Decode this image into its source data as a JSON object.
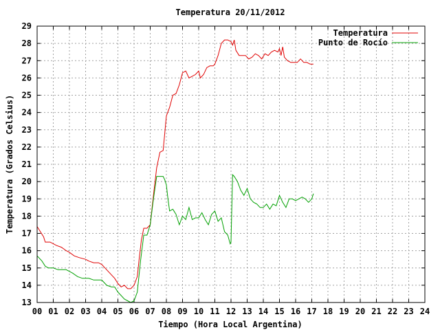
{
  "chart_data": {
    "type": "line",
    "title": "Temperatura 20/11/2012",
    "xlabel": "Tiempo (Hora Local Argentina)",
    "ylabel": "Temperatura (Grados Celsius)",
    "xlim": [
      0,
      24
    ],
    "ylim": [
      13,
      29
    ],
    "x_ticks": [
      "00",
      "01",
      "02",
      "03",
      "04",
      "05",
      "06",
      "07",
      "08",
      "09",
      "10",
      "11",
      "12",
      "13",
      "14",
      "15",
      "16",
      "17",
      "18",
      "19",
      "20",
      "21",
      "22",
      "23",
      "24"
    ],
    "y_ticks": [
      "13",
      "14",
      "15",
      "16",
      "17",
      "18",
      "19",
      "20",
      "21",
      "22",
      "23",
      "24",
      "25",
      "26",
      "27",
      "28",
      "29"
    ],
    "grid": true,
    "legend_position": "top-right",
    "series": [
      {
        "name": "Temperatura",
        "color": "#e00000",
        "x": [
          0,
          0.2,
          0.4,
          0.5,
          0.8,
          1.0,
          1.2,
          1.5,
          1.8,
          2.0,
          2.3,
          2.6,
          3.0,
          3.2,
          3.5,
          3.8,
          4.0,
          4.3,
          4.6,
          4.8,
          5.0,
          5.2,
          5.4,
          5.6,
          5.8,
          6.0,
          6.2,
          6.3,
          6.45,
          6.6,
          6.8,
          7.0,
          7.2,
          7.4,
          7.6,
          7.8,
          8.0,
          8.2,
          8.4,
          8.6,
          8.8,
          9.0,
          9.2,
          9.4,
          9.6,
          9.8,
          10.0,
          10.1,
          10.3,
          10.5,
          10.7,
          10.9,
          11.0,
          11.2,
          11.4,
          11.6,
          11.8,
          12.0,
          12.1,
          12.2,
          12.3,
          12.5,
          12.7,
          12.9,
          13.1,
          13.3,
          13.5,
          13.7,
          13.9,
          14.1,
          14.3,
          14.5,
          14.7,
          14.9,
          15.0,
          15.1,
          15.2,
          15.3,
          15.5,
          15.7,
          15.9,
          16.1,
          16.3,
          16.5,
          16.7,
          16.9,
          17.1
        ],
        "y": [
          17.4,
          17.1,
          16.8,
          16.5,
          16.5,
          16.4,
          16.3,
          16.2,
          16.0,
          15.9,
          15.7,
          15.6,
          15.5,
          15.4,
          15.3,
          15.3,
          15.2,
          14.9,
          14.6,
          14.4,
          14.1,
          13.9,
          14.0,
          13.8,
          13.8,
          14.0,
          14.5,
          15.4,
          16.6,
          17.3,
          17.3,
          17.5,
          19.2,
          20.8,
          21.7,
          21.8,
          23.8,
          24.3,
          25.0,
          25.1,
          25.6,
          26.3,
          26.4,
          26.0,
          26.1,
          26.2,
          26.4,
          26.0,
          26.2,
          26.6,
          26.7,
          26.7,
          26.8,
          27.3,
          28.0,
          28.2,
          28.2,
          28.1,
          27.9,
          28.2,
          27.6,
          27.3,
          27.3,
          27.3,
          27.1,
          27.2,
          27.4,
          27.3,
          27.1,
          27.4,
          27.3,
          27.5,
          27.6,
          27.5,
          27.7,
          27.3,
          27.8,
          27.2,
          27.0,
          26.9,
          26.9,
          26.9,
          27.1,
          26.9,
          26.9,
          26.8,
          26.8
        ]
      },
      {
        "name": "Punto de Rocío",
        "color": "#00a000",
        "x": [
          0,
          0.1,
          0.3,
          0.5,
          0.7,
          1.0,
          1.3,
          1.5,
          1.8,
          2.0,
          2.2,
          2.5,
          2.8,
          3.0,
          3.2,
          3.5,
          3.8,
          4.0,
          4.3,
          4.6,
          4.8,
          5.0,
          5.2,
          5.4,
          5.6,
          5.8,
          6.0,
          6.2,
          6.4,
          6.6,
          6.8,
          7.0,
          7.2,
          7.4,
          7.6,
          7.8,
          7.9,
          8.0,
          8.1,
          8.2,
          8.4,
          8.6,
          8.8,
          9.0,
          9.2,
          9.4,
          9.6,
          9.8,
          10.0,
          10.2,
          10.4,
          10.6,
          10.8,
          11.0,
          11.2,
          11.4,
          11.6,
          11.8,
          11.95,
          12.0,
          12.1,
          12.2,
          12.4,
          12.6,
          12.8,
          13.0,
          13.2,
          13.4,
          13.6,
          13.8,
          14.0,
          14.2,
          14.4,
          14.6,
          14.8,
          15.0,
          15.2,
          15.4,
          15.6,
          15.8,
          16.0,
          16.2,
          16.4,
          16.6,
          16.8,
          17.0,
          17.1
        ],
        "y": [
          15.7,
          15.6,
          15.4,
          15.1,
          15.0,
          15.0,
          14.9,
          14.9,
          14.9,
          14.8,
          14.7,
          14.5,
          14.4,
          14.4,
          14.4,
          14.3,
          14.3,
          14.3,
          14.0,
          13.9,
          13.9,
          13.6,
          13.4,
          13.2,
          13.1,
          13.0,
          13.1,
          13.6,
          15.4,
          16.9,
          16.9,
          17.5,
          19.0,
          20.3,
          20.3,
          20.3,
          20.1,
          19.8,
          19.0,
          18.3,
          18.4,
          18.1,
          17.5,
          18.0,
          17.8,
          18.5,
          17.8,
          17.9,
          17.9,
          18.2,
          17.8,
          17.5,
          18.1,
          18.3,
          17.7,
          17.9,
          17.1,
          16.9,
          16.4,
          16.5,
          20.4,
          20.3,
          20.0,
          19.5,
          19.2,
          19.6,
          19.0,
          18.8,
          18.7,
          18.5,
          18.5,
          18.7,
          18.4,
          18.7,
          18.6,
          19.2,
          18.8,
          18.5,
          19.0,
          19.0,
          18.9,
          19.0,
          19.1,
          19.0,
          18.8,
          19.0,
          19.3
        ]
      }
    ]
  }
}
